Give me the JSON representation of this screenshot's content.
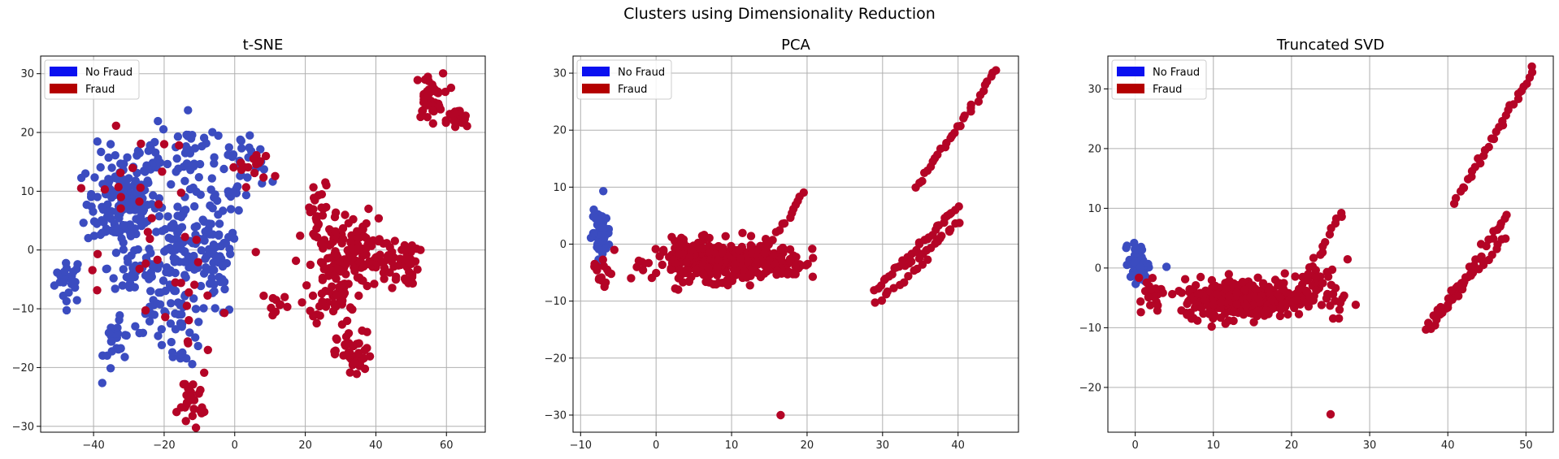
{
  "figure": {
    "suptitle": "Clusters using Dimensionality Reduction"
  },
  "colors": {
    "no_fraud": "#3b4cc0",
    "fraud": "#b40426",
    "legend_no_fraud": "#0a10f0",
    "legend_fraud": "#b40000",
    "grid": "#b0b0b0"
  },
  "chart_data": [
    {
      "type": "scatter",
      "title": "t-SNE",
      "xlim": [
        -55,
        71
      ],
      "ylim": [
        -31,
        33
      ],
      "xticks": [
        -40,
        -20,
        0,
        20,
        40,
        60
      ],
      "yticks": [
        -30,
        -20,
        -10,
        0,
        10,
        20,
        30
      ],
      "grid": true,
      "legend_position": "top-left",
      "legend": [
        "No Fraud",
        "Fraud"
      ],
      "series": [
        {
          "name": "No Fraud",
          "clusters": [
            {
              "x": -47,
              "y": -5,
              "sx": 2,
              "sy": 2,
              "n": 25
            },
            {
              "x": -32,
              "y": 8,
              "sx": 5,
              "sy": 4,
              "n": 150
            },
            {
              "x": -25,
              "y": 15,
              "sx": 4,
              "sy": 3,
              "n": 25
            },
            {
              "x": -13,
              "y": 17,
              "sx": 4,
              "sy": 3,
              "n": 30
            },
            {
              "x": -12,
              "y": 6,
              "sx": 3,
              "sy": 5,
              "n": 40
            },
            {
              "x": -17,
              "y": -2,
              "sx": 3,
              "sy": 4,
              "n": 60
            },
            {
              "x": -28,
              "y": -3,
              "sx": 4,
              "sy": 3,
              "n": 40
            },
            {
              "x": -6,
              "y": -4,
              "sx": 3,
              "sy": 4,
              "n": 50
            },
            {
              "x": -4,
              "y": 4,
              "sx": 3,
              "sy": 4,
              "n": 20
            },
            {
              "x": -33,
              "y": -15,
              "sx": 2,
              "sy": 3,
              "n": 25
            },
            {
              "x": -15,
              "y": -14,
              "sx": 3,
              "sy": 3,
              "n": 25
            },
            {
              "x": -22,
              "y": -10,
              "sx": 3,
              "sy": 2,
              "n": 15
            },
            {
              "x": 1,
              "y": 14,
              "sx": 2,
              "sy": 3,
              "n": 20
            },
            {
              "x": 6,
              "y": 15,
              "sx": 2,
              "sy": 2,
              "n": 12
            }
          ]
        },
        {
          "name": "Fraud",
          "clusters": [
            {
              "x": 55,
              "y": 26,
              "sx": 2,
              "sy": 2,
              "n": 40
            },
            {
              "x": 63,
              "y": 22,
              "sx": 1.5,
              "sy": 1,
              "n": 25
            },
            {
              "x": 29,
              "y": -3,
              "sx": 4,
              "sy": 5,
              "n": 140
            },
            {
              "x": 36,
              "y": 0,
              "sx": 3,
              "sy": 3,
              "n": 40
            },
            {
              "x": 46,
              "y": -2,
              "sx": 3,
              "sy": 2,
              "n": 50
            },
            {
              "x": 34,
              "y": -18,
              "sx": 2.5,
              "sy": 2,
              "n": 45
            },
            {
              "x": 24,
              "y": 6,
              "sx": 2,
              "sy": 3,
              "n": 20
            },
            {
              "x": -12,
              "y": -25,
              "sx": 2,
              "sy": 2,
              "n": 28
            },
            {
              "x": 5,
              "y": 14,
              "sx": 3,
              "sy": 1.5,
              "n": 15
            },
            {
              "x": 12,
              "y": -9,
              "sx": 2,
              "sy": 1,
              "n": 10
            },
            {
              "x": -28,
              "y": 8,
              "sx": 8,
              "sy": 6,
              "n": 25
            },
            {
              "x": -15,
              "y": -10,
              "sx": 8,
              "sy": 8,
              "n": 18
            }
          ]
        }
      ]
    },
    {
      "type": "scatter",
      "title": "PCA",
      "xlim": [
        -11,
        48
      ],
      "ylim": [
        -33,
        33
      ],
      "xticks": [
        -10,
        0,
        10,
        20,
        30,
        40
      ],
      "yticks": [
        -30,
        -20,
        -10,
        0,
        10,
        20,
        30
      ],
      "grid": true,
      "legend_position": "top-left",
      "legend": [
        "No Fraud",
        "Fraud"
      ],
      "series": [
        {
          "name": "No Fraud",
          "clusters": [
            {
              "x": -7.3,
              "y": 2,
              "sx": 0.6,
              "sy": 1.8,
              "n": 60
            },
            {
              "x": -7,
              "y": 9.3,
              "sx": 0.1,
              "sy": 0.1,
              "n": 1
            }
          ]
        },
        {
          "name": "Fraud",
          "clusters": [
            {
              "x": 8,
              "y": -3,
              "sx": 4,
              "sy": 1.7,
              "n": 350
            },
            {
              "x": 17,
              "y": -3,
              "sx": 2,
              "sy": 1.5,
              "n": 40
            },
            {
              "x": -7,
              "y": -4,
              "sx": 0.7,
              "sy": 2.5,
              "n": 15
            },
            {
              "x": 16.5,
              "y": -30,
              "sx": 0.1,
              "sy": 0.1,
              "n": 1
            }
          ],
          "lines": [
            {
              "from": [
                34.5,
                10
              ],
              "to": [
                45,
                30.5
              ],
              "n": 30
            },
            {
              "from": [
                12,
                -6
              ],
              "to": [
                19.5,
                9
              ],
              "n": 22
            },
            {
              "from": [
                29,
                -8
              ],
              "to": [
                40,
                6.5
              ],
              "n": 32
            },
            {
              "from": [
                33,
                -4
              ],
              "to": [
                40,
                3.5
              ],
              "n": 20
            },
            {
              "from": [
                29,
                -10.5
              ],
              "to": [
                36,
                -3
              ],
              "n": 12
            }
          ]
        }
      ]
    },
    {
      "type": "scatter",
      "title": "Truncated SVD",
      "xlim": [
        -3.5,
        53.5
      ],
      "ylim": [
        -27.5,
        35.5
      ],
      "xticks": [
        0,
        10,
        20,
        30,
        40,
        50
      ],
      "yticks": [
        -20,
        -10,
        0,
        10,
        20,
        30
      ],
      "grid": true,
      "legend_position": "top-left",
      "legend": [
        "No Fraud",
        "Fraud"
      ],
      "series": [
        {
          "name": "No Fraud",
          "clusters": [
            {
              "x": 0.4,
              "y": 0.8,
              "sx": 0.6,
              "sy": 1.6,
              "n": 60
            },
            {
              "x": 4,
              "y": 0.2,
              "sx": 0.1,
              "sy": 0.1,
              "n": 1
            }
          ]
        },
        {
          "name": "Fraud",
          "clusters": [
            {
              "x": 14,
              "y": -5,
              "sx": 4,
              "sy": 1.6,
              "n": 350
            },
            {
              "x": 24,
              "y": -4,
              "sx": 2,
              "sy": 2,
              "n": 40
            },
            {
              "x": 2,
              "y": -4,
              "sx": 0.7,
              "sy": 1.5,
              "n": 15
            },
            {
              "x": 25,
              "y": -24.5,
              "sx": 0.1,
              "sy": 0.1,
              "n": 1
            }
          ],
          "lines": [
            {
              "from": [
                41,
                11
              ],
              "to": [
                51,
                33.5
              ],
              "n": 32
            },
            {
              "from": [
                20,
                -6
              ],
              "to": [
                26.5,
                9.5
              ],
              "n": 20
            },
            {
              "from": [
                38,
                -10
              ],
              "to": [
                47.5,
                9
              ],
              "n": 30
            },
            {
              "from": [
                40,
                -6
              ],
              "to": [
                47.5,
                5
              ],
              "n": 18
            },
            {
              "from": [
                37,
                -10.5
              ],
              "to": [
                41,
                -3
              ],
              "n": 8
            }
          ]
        }
      ]
    }
  ]
}
